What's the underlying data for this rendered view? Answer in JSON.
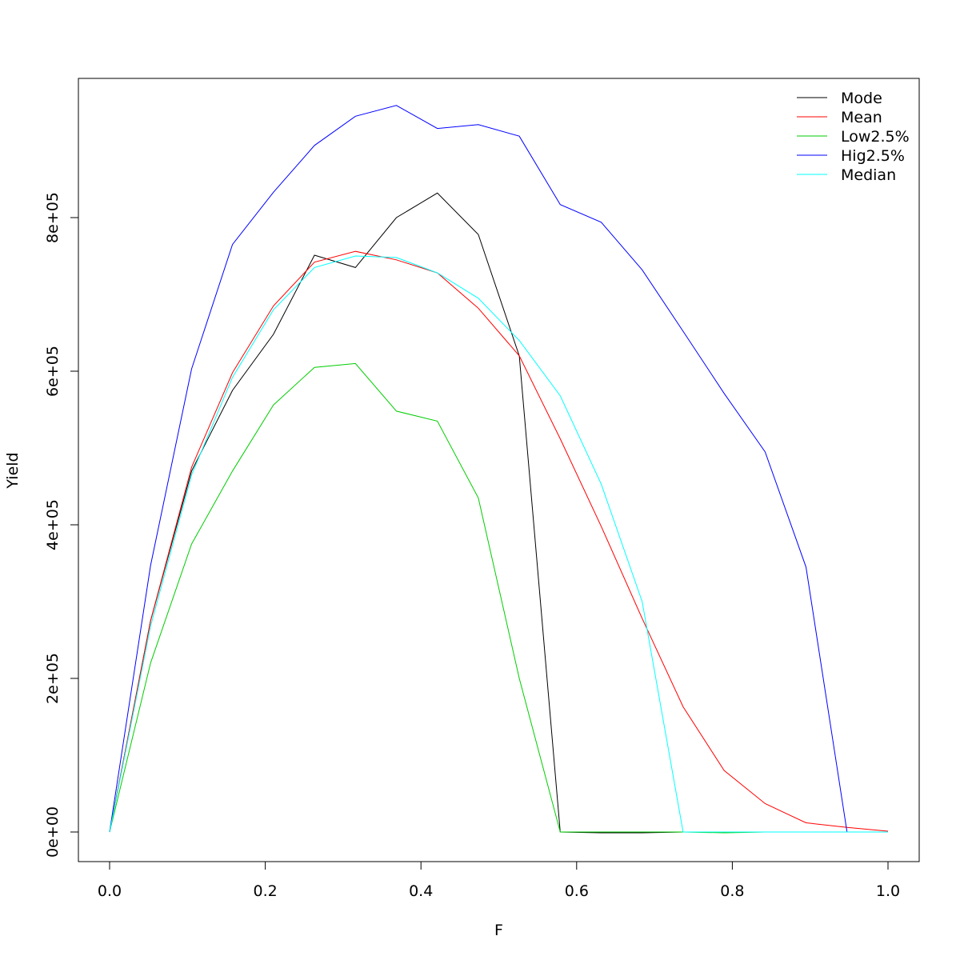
{
  "chart_data": {
    "type": "line",
    "title": "",
    "xlabel": "F",
    "ylabel": "Yield",
    "xlim": [
      0,
      1
    ],
    "ylim": [
      -70000,
      980000
    ],
    "x_ticks": [
      0,
      0.2,
      0.4,
      0.6,
      0.8,
      1
    ],
    "x_tick_labels": [
      "0.0",
      "0.2",
      "0.4",
      "0.6",
      "0.8",
      "1.0"
    ],
    "y_ticks": [
      0,
      200000,
      400000,
      600000,
      800000
    ],
    "y_tick_labels": [
      "0e+00",
      "2e+05",
      "4e+05",
      "6e+05",
      "8e+05"
    ],
    "grid": false,
    "legend_position": "top-right",
    "x": [
      0,
      0.0526,
      0.1053,
      0.1579,
      0.2105,
      0.2632,
      0.3158,
      0.3684,
      0.4211,
      0.4737,
      0.5263,
      0.5789,
      0.6316,
      0.6842,
      0.7368,
      0.7895,
      0.8421,
      0.8947,
      0.9474,
      1.0
    ],
    "series": [
      {
        "name": "Mode",
        "color": "#000000",
        "values": [
          0,
          275000,
          470000,
          575000,
          648000,
          751000,
          735000,
          800000,
          832000,
          778000,
          620000,
          0,
          -1000,
          -1000,
          0,
          0,
          0,
          0,
          0,
          0
        ]
      },
      {
        "name": "Mean",
        "color": "#ff0000",
        "values": [
          0,
          275000,
          475000,
          598000,
          685000,
          742000,
          756000,
          745000,
          728000,
          682000,
          620000,
          512000,
          398000,
          278000,
          163000,
          80000,
          37000,
          12000,
          6000,
          1000
        ]
      },
      {
        "name": "Low2.5%",
        "color": "#00cd00",
        "values": [
          0,
          220000,
          375000,
          470000,
          556000,
          605000,
          610000,
          548000,
          535000,
          435000,
          200000,
          0,
          0,
          0,
          0,
          -1000,
          0,
          0,
          0,
          0
        ]
      },
      {
        "name": "Hig2.5%",
        "color": "#0000ff",
        "values": [
          0,
          347000,
          603000,
          765000,
          833000,
          894000,
          932000,
          946000,
          916000,
          921000,
          906000,
          817000,
          794000,
          732000,
          652000,
          571000,
          495000,
          345000,
          0,
          0
        ]
      },
      {
        "name": "Median",
        "color": "#00ffff",
        "values": [
          0,
          268000,
          465000,
          592000,
          680000,
          735000,
          750000,
          748000,
          728000,
          695000,
          640000,
          568000,
          453000,
          300000,
          0,
          0,
          0,
          0,
          0,
          0
        ]
      }
    ]
  }
}
